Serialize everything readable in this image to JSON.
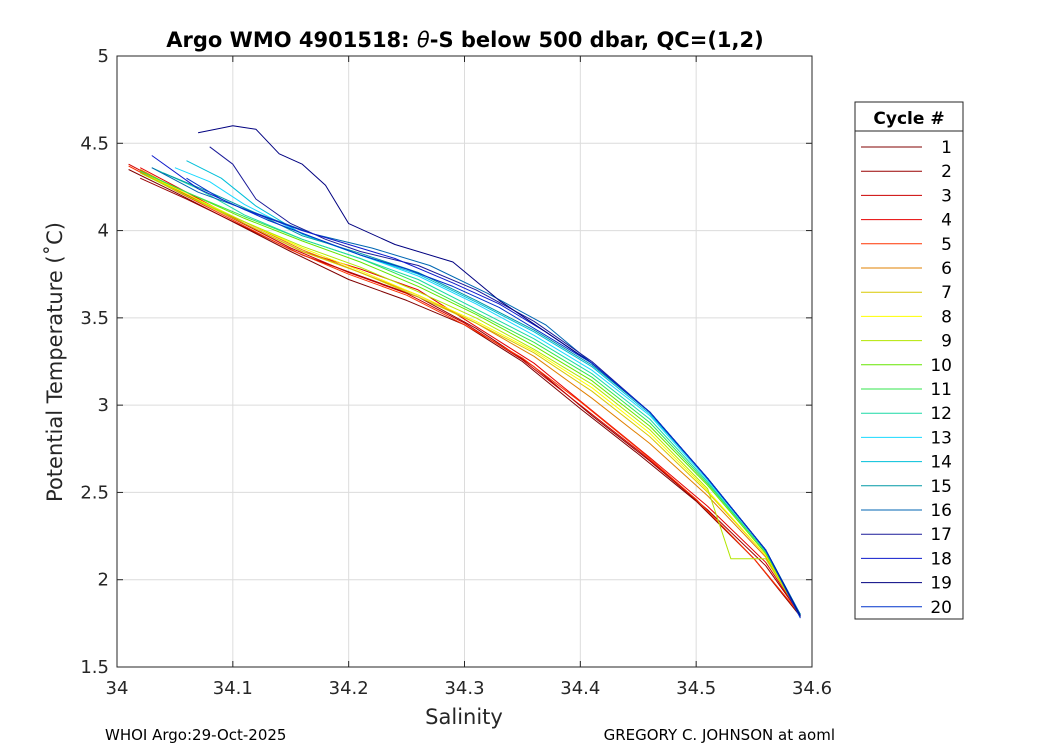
{
  "chart_data": {
    "type": "line",
    "title_prefix": "Argo WMO 4901518: ",
    "title_theta": "θ",
    "title_suffix": "-S below 500 dbar,  QC=(1,2)",
    "xlabel": "Salinity",
    "ylabel": "Potential Temperature (˚C)",
    "xlim": [
      34.0,
      34.6
    ],
    "ylim": [
      1.5,
      5.0
    ],
    "xticks": [
      "34",
      "34.1",
      "34.2",
      "34.3",
      "34.4",
      "34.5",
      "34.6"
    ],
    "xtick_values": [
      34.0,
      34.1,
      34.2,
      34.3,
      34.4,
      34.5,
      34.6
    ],
    "yticks": [
      "1.5",
      "2",
      "2.5",
      "3",
      "3.5",
      "4",
      "4.5",
      "5"
    ],
    "ytick_values": [
      1.5,
      2.0,
      2.5,
      3.0,
      3.5,
      4.0,
      4.5,
      5.0
    ],
    "grid": true,
    "legend_title": "Cycle #",
    "legend_position": "right-outside",
    "series": [
      {
        "name": "1",
        "color": "#800000",
        "x": [
          34.01,
          34.05,
          34.1,
          34.15,
          34.2,
          34.25,
          34.3,
          34.35,
          34.4,
          34.45,
          34.5,
          34.55,
          34.59
        ],
        "y": [
          4.35,
          4.22,
          4.05,
          3.88,
          3.72,
          3.6,
          3.46,
          3.25,
          2.98,
          2.72,
          2.45,
          2.12,
          1.79
        ]
      },
      {
        "name": "2",
        "color": "#990000",
        "x": [
          34.02,
          34.06,
          34.11,
          34.16,
          34.21,
          34.26,
          34.31,
          34.36,
          34.41,
          34.46,
          34.51,
          34.56,
          34.59
        ],
        "y": [
          4.3,
          4.18,
          4.02,
          3.86,
          3.74,
          3.62,
          3.44,
          3.22,
          2.94,
          2.68,
          2.4,
          2.08,
          1.8
        ]
      },
      {
        "name": "3",
        "color": "#cc0000",
        "x": [
          34.01,
          34.05,
          34.1,
          34.15,
          34.2,
          34.25,
          34.3,
          34.35,
          34.4,
          34.45,
          34.5,
          34.55,
          34.59
        ],
        "y": [
          4.38,
          4.24,
          4.07,
          3.9,
          3.76,
          3.64,
          3.47,
          3.26,
          3.0,
          2.74,
          2.46,
          2.12,
          1.8
        ]
      },
      {
        "name": "4",
        "color": "#e60000",
        "x": [
          34.02,
          34.06,
          34.11,
          34.16,
          34.21,
          34.26,
          34.31,
          34.36,
          34.41,
          34.46,
          34.51,
          34.56,
          34.59
        ],
        "y": [
          4.36,
          4.22,
          4.04,
          3.88,
          3.78,
          3.66,
          3.45,
          3.24,
          2.97,
          2.7,
          2.42,
          2.1,
          1.8
        ]
      },
      {
        "name": "5",
        "color": "#ff3300",
        "x": [
          34.01,
          34.05,
          34.1,
          34.15,
          34.2,
          34.25,
          34.3,
          34.35,
          34.4,
          34.45,
          34.5,
          34.55,
          34.59
        ],
        "y": [
          4.37,
          4.23,
          4.06,
          3.89,
          3.75,
          3.63,
          3.46,
          3.27,
          3.02,
          2.75,
          2.46,
          2.12,
          1.8
        ]
      },
      {
        "name": "6",
        "color": "#e08000",
        "x": [
          34.02,
          34.06,
          34.11,
          34.16,
          34.21,
          34.26,
          34.31,
          34.36,
          34.41,
          34.46,
          34.51,
          34.56,
          34.59
        ],
        "y": [
          4.35,
          4.21,
          4.05,
          3.89,
          3.76,
          3.63,
          3.47,
          3.28,
          3.04,
          2.78,
          2.48,
          2.13,
          1.8
        ]
      },
      {
        "name": "7",
        "color": "#d9c800",
        "x": [
          34.02,
          34.06,
          34.11,
          34.16,
          34.21,
          34.26,
          34.31,
          34.36,
          34.41,
          34.46,
          34.51,
          34.56,
          34.59
        ],
        "y": [
          4.34,
          4.2,
          4.04,
          3.88,
          3.76,
          3.62,
          3.47,
          3.3,
          3.08,
          2.82,
          2.5,
          2.14,
          1.8
        ]
      },
      {
        "name": "8",
        "color": "#ffff00",
        "x": [
          34.02,
          34.06,
          34.11,
          34.16,
          34.21,
          34.26,
          34.31,
          34.36,
          34.41,
          34.46,
          34.51,
          34.56,
          34.59
        ],
        "y": [
          4.34,
          4.21,
          4.05,
          3.9,
          3.77,
          3.63,
          3.48,
          3.31,
          3.1,
          2.84,
          2.51,
          2.14,
          1.8
        ]
      },
      {
        "name": "9",
        "color": "#b3e600",
        "x": [
          34.02,
          34.06,
          34.11,
          34.16,
          34.21,
          34.26,
          34.31,
          34.36,
          34.41,
          34.46,
          34.51,
          34.53,
          34.56,
          34.59
        ],
        "y": [
          4.33,
          4.2,
          4.05,
          3.91,
          3.79,
          3.65,
          3.5,
          3.32,
          3.12,
          2.86,
          2.52,
          2.12,
          2.12,
          1.8
        ]
      },
      {
        "name": "10",
        "color": "#66e600",
        "x": [
          34.02,
          34.06,
          34.11,
          34.16,
          34.21,
          34.26,
          34.31,
          34.36,
          34.41,
          34.46,
          34.51,
          34.56,
          34.59
        ],
        "y": [
          4.34,
          4.22,
          4.07,
          3.94,
          3.82,
          3.68,
          3.52,
          3.34,
          3.14,
          2.88,
          2.54,
          2.15,
          1.8
        ]
      },
      {
        "name": "11",
        "color": "#33e64d",
        "x": [
          34.02,
          34.06,
          34.11,
          34.16,
          34.21,
          34.26,
          34.31,
          34.36,
          34.41,
          34.46,
          34.51,
          34.56,
          34.59
        ],
        "y": [
          4.34,
          4.22,
          4.08,
          3.95,
          3.84,
          3.7,
          3.53,
          3.36,
          3.16,
          2.9,
          2.55,
          2.16,
          1.8
        ]
      },
      {
        "name": "12",
        "color": "#1ad9a6",
        "x": [
          34.03,
          34.07,
          34.11,
          34.16,
          34.21,
          34.26,
          34.31,
          34.36,
          34.41,
          34.46,
          34.51,
          34.56,
          34.59
        ],
        "y": [
          4.36,
          4.24,
          4.09,
          3.95,
          3.84,
          3.72,
          3.55,
          3.38,
          3.18,
          2.92,
          2.56,
          2.16,
          1.8
        ]
      },
      {
        "name": "13",
        "color": "#1ad9ff",
        "x": [
          34.05,
          34.08,
          34.11,
          34.16,
          34.21,
          34.26,
          34.31,
          34.36,
          34.41,
          34.46,
          34.51,
          34.56,
          34.59
        ],
        "y": [
          4.36,
          4.28,
          4.15,
          3.98,
          3.86,
          3.74,
          3.58,
          3.4,
          3.2,
          2.94,
          2.57,
          2.17,
          1.8
        ]
      },
      {
        "name": "14",
        "color": "#00bfd9",
        "x": [
          34.06,
          34.09,
          34.12,
          34.16,
          34.21,
          34.26,
          34.31,
          34.36,
          34.41,
          34.46,
          34.51,
          34.56,
          34.59
        ],
        "y": [
          4.4,
          4.3,
          4.14,
          3.98,
          3.86,
          3.75,
          3.59,
          3.42,
          3.22,
          2.95,
          2.58,
          2.17,
          1.8
        ]
      },
      {
        "name": "15",
        "color": "#0099a6",
        "x": [
          34.04,
          34.08,
          34.12,
          34.16,
          34.21,
          34.26,
          34.31,
          34.36,
          34.41,
          34.46,
          34.51,
          34.56,
          34.59
        ],
        "y": [
          4.33,
          4.22,
          4.1,
          3.97,
          3.87,
          3.76,
          3.6,
          3.43,
          3.23,
          2.96,
          2.58,
          2.17,
          1.8
        ]
      },
      {
        "name": "16",
        "color": "#0066b3",
        "x": [
          34.03,
          34.07,
          34.12,
          34.17,
          34.22,
          34.27,
          34.32,
          34.37,
          34.41,
          34.46,
          34.51,
          34.56,
          34.59
        ],
        "y": [
          4.36,
          4.22,
          4.1,
          3.98,
          3.9,
          3.8,
          3.64,
          3.46,
          3.24,
          2.96,
          2.58,
          2.17,
          1.8
        ]
      },
      {
        "name": "17",
        "color": "#1a1a99",
        "x": [
          34.08,
          34.1,
          34.12,
          34.15,
          34.18,
          34.21,
          34.26,
          34.31,
          34.36,
          34.41,
          34.46,
          34.51,
          34.56,
          34.59
        ],
        "y": [
          4.48,
          4.38,
          4.18,
          4.04,
          3.95,
          3.88,
          3.8,
          3.66,
          3.48,
          3.25,
          2.96,
          2.58,
          2.17,
          1.79
        ]
      },
      {
        "name": "18",
        "color": "#0d1acc",
        "x": [
          34.03,
          34.07,
          34.11,
          34.16,
          34.2,
          34.24,
          34.29,
          34.33,
          34.37,
          34.41,
          34.46,
          34.51,
          34.56,
          34.59
        ],
        "y": [
          4.43,
          4.24,
          4.12,
          4.0,
          3.92,
          3.84,
          3.7,
          3.58,
          3.42,
          3.24,
          2.96,
          2.58,
          2.17,
          1.79
        ]
      },
      {
        "name": "19",
        "color": "#000080",
        "x": [
          34.07,
          34.1,
          34.12,
          34.14,
          34.16,
          34.18,
          34.2,
          34.24,
          34.29,
          34.33,
          34.37,
          34.41,
          34.46,
          34.51,
          34.56,
          34.59
        ],
        "y": [
          4.56,
          4.6,
          4.58,
          4.44,
          4.38,
          4.26,
          4.04,
          3.92,
          3.82,
          3.6,
          3.42,
          3.24,
          2.96,
          2.58,
          2.17,
          1.79
        ]
      },
      {
        "name": "20",
        "color": "#0033cc",
        "x": [
          34.06,
          34.09,
          34.13,
          34.17,
          34.21,
          34.25,
          34.29,
          34.33,
          34.37,
          34.41,
          34.46,
          34.51,
          34.56,
          34.59
        ],
        "y": [
          4.3,
          4.18,
          4.06,
          3.96,
          3.86,
          3.78,
          3.68,
          3.56,
          3.4,
          3.24,
          2.96,
          2.58,
          2.17,
          1.78
        ]
      }
    ]
  },
  "footer": {
    "left": "WHOI Argo:29-Oct-2025",
    "right": "GREGORY C. JOHNSON at aoml"
  }
}
